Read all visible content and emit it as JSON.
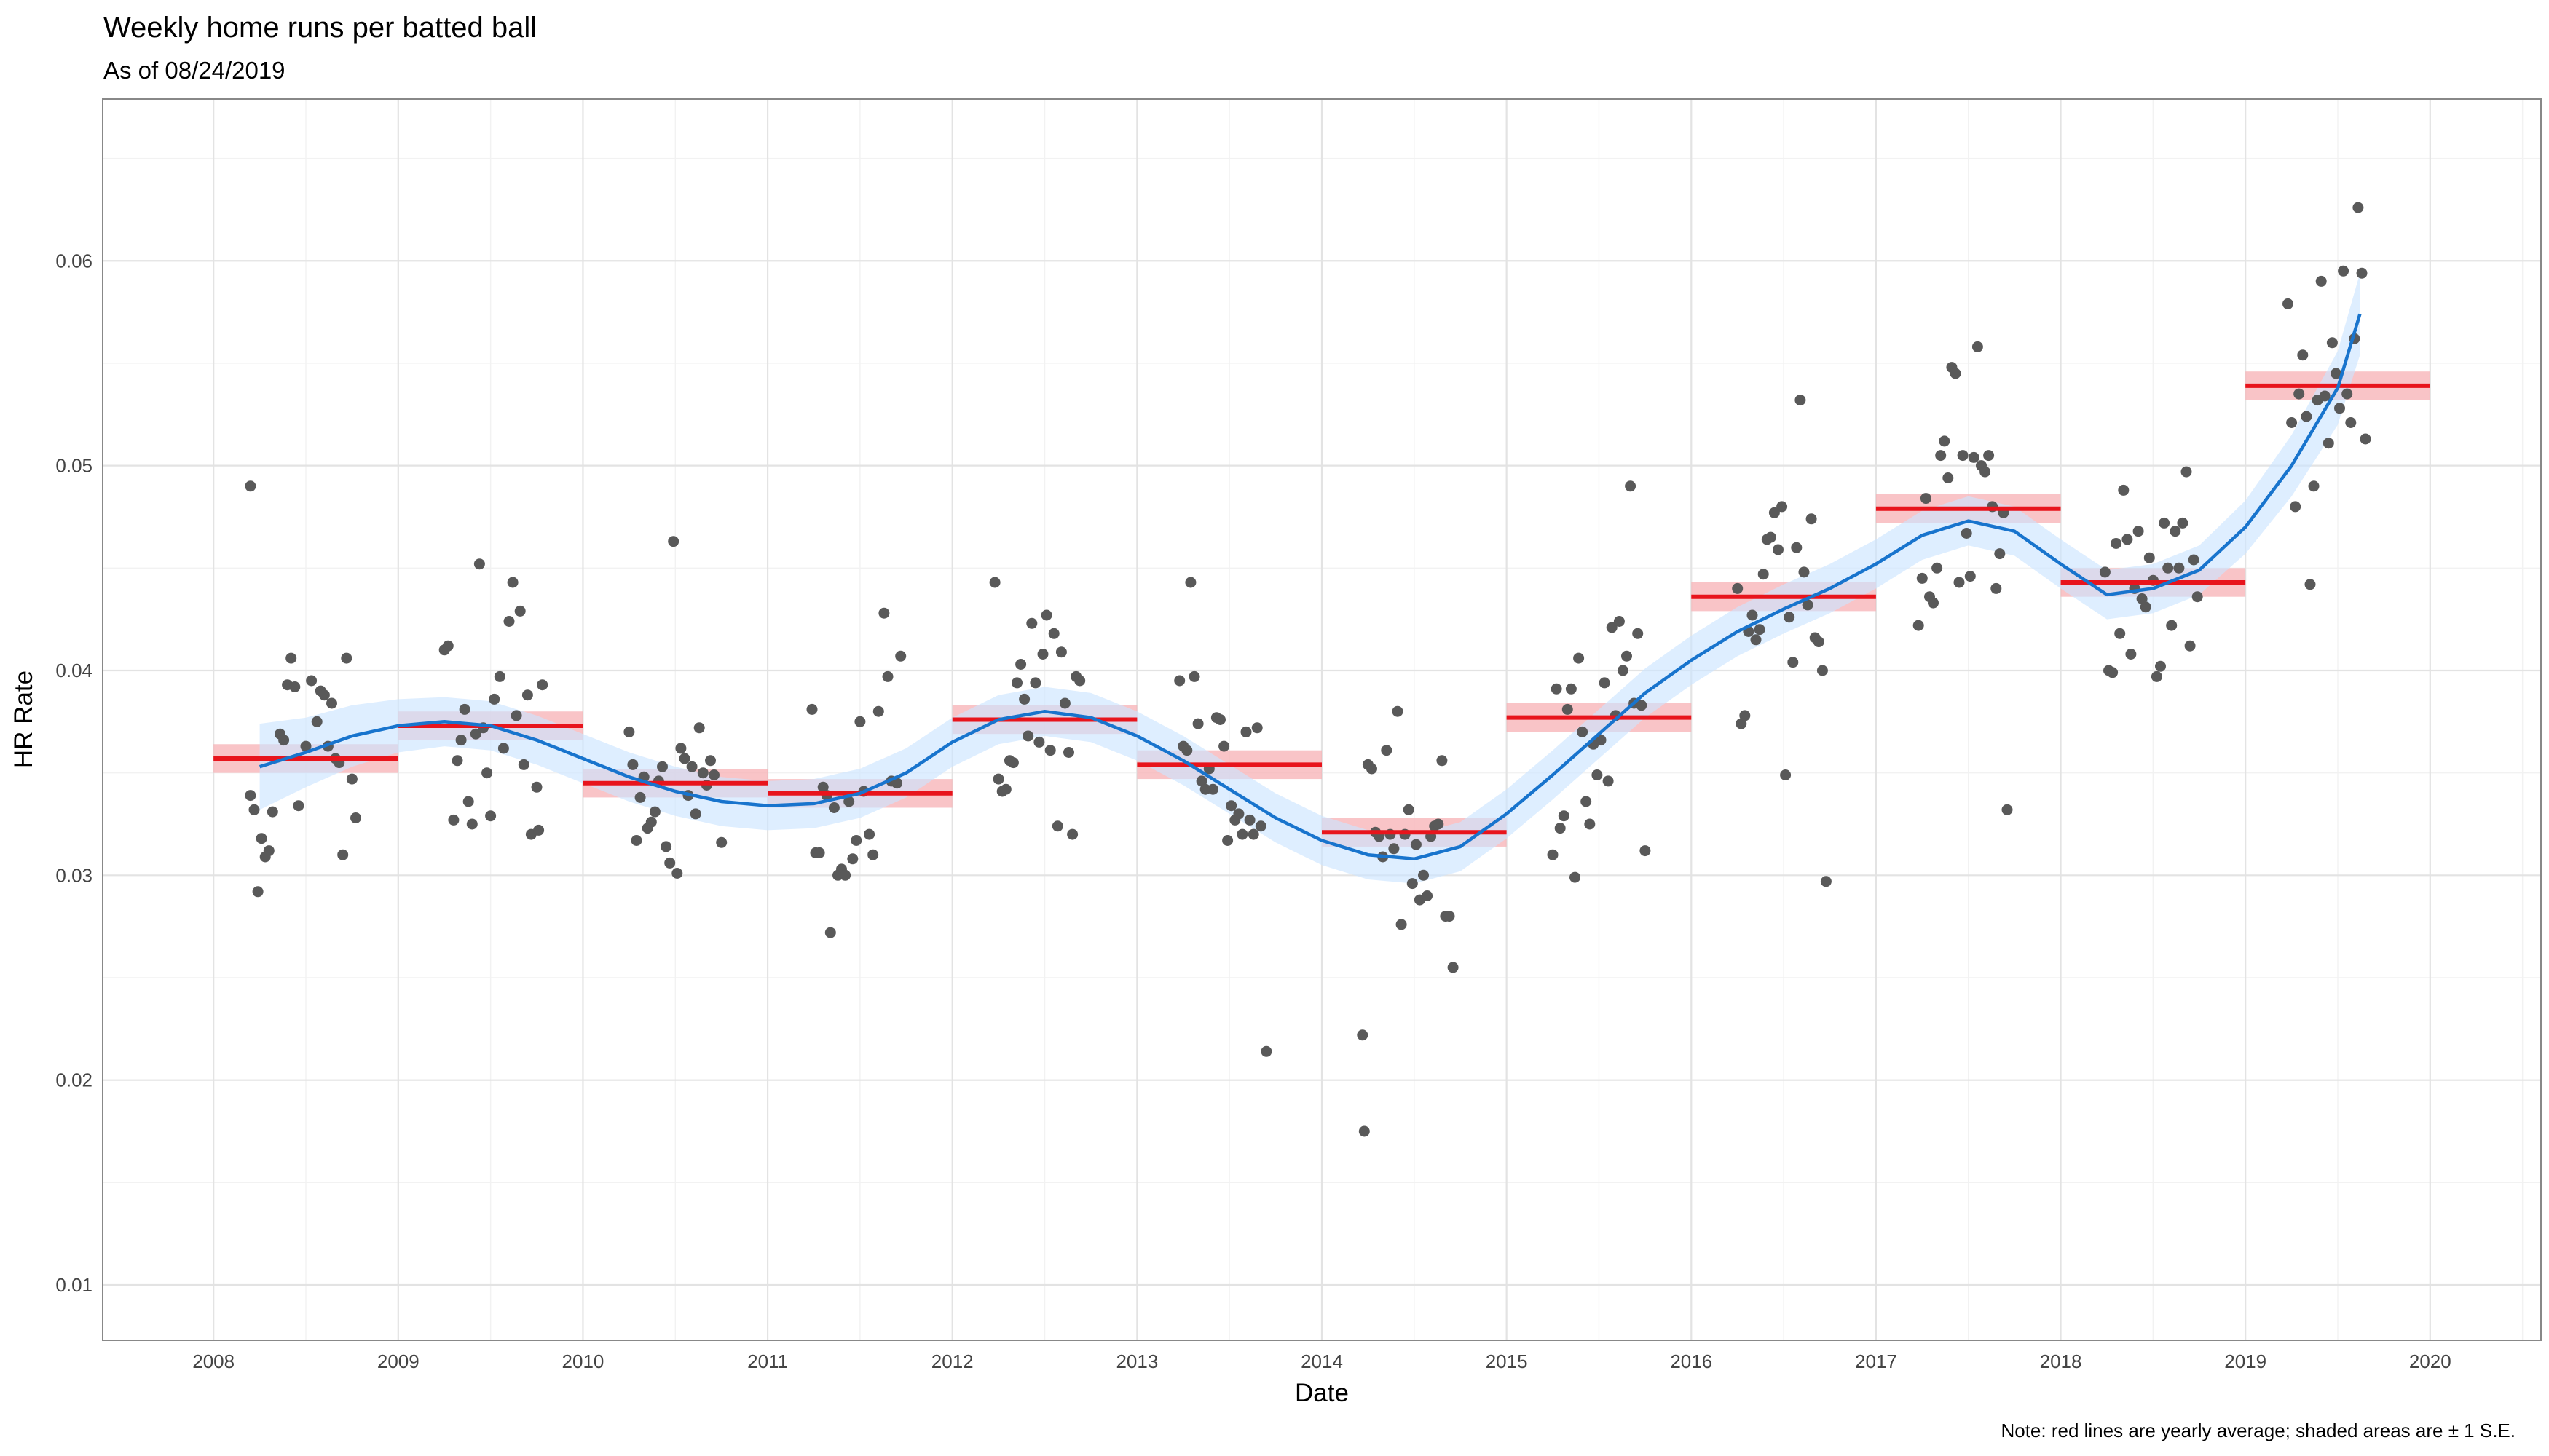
{
  "chart_data": {
    "type": "scatter",
    "title": "Weekly home runs per batted ball",
    "subtitle": "As of 08/24/2019",
    "xlabel": "Date",
    "ylabel": "HR Rate",
    "caption": "Note: red lines are yearly average; shaded areas are ± 1 S.E.",
    "x_ticks": [
      "2008",
      "2009",
      "2010",
      "2011",
      "2012",
      "2013",
      "2014",
      "2015",
      "2016",
      "2017",
      "2018",
      "2019",
      "2020"
    ],
    "y_ticks": [
      "0.01",
      "0.02",
      "0.03",
      "0.04",
      "0.05",
      "0.06"
    ],
    "xlim": [
      2007.4,
      2020.6
    ],
    "ylim": [
      0.0073,
      0.0679
    ],
    "grid": true,
    "colors": {
      "points": "#595959",
      "smooth_line": "#1874CD",
      "smooth_band": "#CCE5FF",
      "average_line": "#E8141C",
      "average_band": "#F7B0B4",
      "grid_major": "#E3E3E3",
      "grid_minor": "#F2F2F2",
      "panel_border": "#888888"
    },
    "yearly_average": [
      {
        "year": 2008,
        "value": 0.0357,
        "se": 0.0007
      },
      {
        "year": 2009,
        "value": 0.0373,
        "se": 0.0007
      },
      {
        "year": 2010,
        "value": 0.0345,
        "se": 0.0007
      },
      {
        "year": 2011,
        "value": 0.034,
        "se": 0.0007
      },
      {
        "year": 2012,
        "value": 0.0376,
        "se": 0.0007
      },
      {
        "year": 2013,
        "value": 0.0354,
        "se": 0.0007
      },
      {
        "year": 2014,
        "value": 0.0321,
        "se": 0.0007
      },
      {
        "year": 2015,
        "value": 0.0377,
        "se": 0.0007
      },
      {
        "year": 2016,
        "value": 0.0436,
        "se": 0.0007
      },
      {
        "year": 2017,
        "value": 0.0479,
        "se": 0.0007
      },
      {
        "year": 2018,
        "value": 0.0443,
        "se": 0.0007
      },
      {
        "year": 2019,
        "value": 0.0539,
        "se": 0.0007
      }
    ],
    "smooth": [
      [
        2008.25,
        0.0353,
        0.0021
      ],
      [
        2008.5,
        0.036,
        0.0017
      ],
      [
        2008.75,
        0.0368,
        0.0015
      ],
      [
        2009.0,
        0.0373,
        0.0013
      ],
      [
        2009.25,
        0.0375,
        0.0012
      ],
      [
        2009.5,
        0.0373,
        0.0012
      ],
      [
        2009.75,
        0.0366,
        0.0012
      ],
      [
        2010.0,
        0.0357,
        0.0012
      ],
      [
        2010.25,
        0.0348,
        0.0012
      ],
      [
        2010.5,
        0.0341,
        0.0012
      ],
      [
        2010.75,
        0.0336,
        0.0012
      ],
      [
        2011.0,
        0.0334,
        0.0012
      ],
      [
        2011.25,
        0.0335,
        0.0012
      ],
      [
        2011.5,
        0.034,
        0.0012
      ],
      [
        2011.75,
        0.035,
        0.0012
      ],
      [
        2012.0,
        0.0365,
        0.0012
      ],
      [
        2012.25,
        0.0376,
        0.0012
      ],
      [
        2012.5,
        0.038,
        0.0012
      ],
      [
        2012.75,
        0.0377,
        0.0012
      ],
      [
        2013.0,
        0.0368,
        0.0012
      ],
      [
        2013.25,
        0.0356,
        0.0012
      ],
      [
        2013.5,
        0.0342,
        0.0012
      ],
      [
        2013.75,
        0.0328,
        0.0012
      ],
      [
        2014.0,
        0.0317,
        0.0012
      ],
      [
        2014.25,
        0.031,
        0.0012
      ],
      [
        2014.5,
        0.0308,
        0.0012
      ],
      [
        2014.75,
        0.0314,
        0.0012
      ],
      [
        2015.0,
        0.033,
        0.0012
      ],
      [
        2015.25,
        0.0349,
        0.0012
      ],
      [
        2015.5,
        0.0369,
        0.0012
      ],
      [
        2015.75,
        0.0389,
        0.0012
      ],
      [
        2016.0,
        0.0405,
        0.0012
      ],
      [
        2016.25,
        0.0419,
        0.0012
      ],
      [
        2016.5,
        0.043,
        0.0012
      ],
      [
        2016.75,
        0.044,
        0.0012
      ],
      [
        2017.0,
        0.0452,
        0.0012
      ],
      [
        2017.25,
        0.0466,
        0.0012
      ],
      [
        2017.5,
        0.0473,
        0.0012
      ],
      [
        2017.75,
        0.0468,
        0.0012
      ],
      [
        2018.0,
        0.0452,
        0.0012
      ],
      [
        2018.25,
        0.0437,
        0.0012
      ],
      [
        2018.5,
        0.044,
        0.0012
      ],
      [
        2018.75,
        0.0449,
        0.0012
      ],
      [
        2019.0,
        0.047,
        0.0013
      ],
      [
        2019.25,
        0.05,
        0.0015
      ],
      [
        2019.5,
        0.0538,
        0.0018
      ],
      [
        2019.62,
        0.0574,
        0.002
      ]
    ],
    "points": [
      [
        2008.2,
        0.049
      ],
      [
        2008.2,
        0.0339
      ],
      [
        2008.22,
        0.0332
      ],
      [
        2008.24,
        0.0292
      ],
      [
        2008.26,
        0.0318
      ],
      [
        2008.28,
        0.0309
      ],
      [
        2008.3,
        0.0312
      ],
      [
        2008.32,
        0.0331
      ],
      [
        2008.36,
        0.0369
      ],
      [
        2008.38,
        0.0366
      ],
      [
        2008.4,
        0.0393
      ],
      [
        2008.42,
        0.0406
      ],
      [
        2008.44,
        0.0392
      ],
      [
        2008.46,
        0.0334
      ],
      [
        2008.5,
        0.0363
      ],
      [
        2008.53,
        0.0395
      ],
      [
        2008.56,
        0.0375
      ],
      [
        2008.58,
        0.039
      ],
      [
        2008.6,
        0.0388
      ],
      [
        2008.62,
        0.0363
      ],
      [
        2008.64,
        0.0384
      ],
      [
        2008.66,
        0.0357
      ],
      [
        2008.68,
        0.0355
      ],
      [
        2008.7,
        0.031
      ],
      [
        2008.72,
        0.0406
      ],
      [
        2008.75,
        0.0347
      ],
      [
        2008.77,
        0.0328
      ],
      [
        2009.25,
        0.041
      ],
      [
        2009.27,
        0.0412
      ],
      [
        2009.3,
        0.0327
      ],
      [
        2009.32,
        0.0356
      ],
      [
        2009.34,
        0.0366
      ],
      [
        2009.36,
        0.0381
      ],
      [
        2009.38,
        0.0336
      ],
      [
        2009.4,
        0.0325
      ],
      [
        2009.42,
        0.0369
      ],
      [
        2009.44,
        0.0452
      ],
      [
        2009.46,
        0.0372
      ],
      [
        2009.48,
        0.035
      ],
      [
        2009.5,
        0.0329
      ],
      [
        2009.52,
        0.0386
      ],
      [
        2009.55,
        0.0397
      ],
      [
        2009.57,
        0.0362
      ],
      [
        2009.6,
        0.0424
      ],
      [
        2009.62,
        0.0443
      ],
      [
        2009.64,
        0.0378
      ],
      [
        2009.66,
        0.0429
      ],
      [
        2009.68,
        0.0354
      ],
      [
        2009.7,
        0.0388
      ],
      [
        2009.72,
        0.032
      ],
      [
        2009.75,
        0.0343
      ],
      [
        2009.76,
        0.0322
      ],
      [
        2009.78,
        0.0393
      ],
      [
        2010.25,
        0.037
      ],
      [
        2010.27,
        0.0354
      ],
      [
        2010.29,
        0.0317
      ],
      [
        2010.31,
        0.0338
      ],
      [
        2010.33,
        0.0348
      ],
      [
        2010.35,
        0.0323
      ],
      [
        2010.37,
        0.0326
      ],
      [
        2010.39,
        0.0331
      ],
      [
        2010.41,
        0.0346
      ],
      [
        2010.43,
        0.0353
      ],
      [
        2010.45,
        0.0314
      ],
      [
        2010.47,
        0.0306
      ],
      [
        2010.49,
        0.0463
      ],
      [
        2010.51,
        0.0301
      ],
      [
        2010.53,
        0.0362
      ],
      [
        2010.55,
        0.0357
      ],
      [
        2010.57,
        0.0339
      ],
      [
        2010.59,
        0.0353
      ],
      [
        2010.61,
        0.033
      ],
      [
        2010.63,
        0.0372
      ],
      [
        2010.65,
        0.035
      ],
      [
        2010.67,
        0.0344
      ],
      [
        2010.69,
        0.0356
      ],
      [
        2010.71,
        0.0349
      ],
      [
        2010.75,
        0.0316
      ],
      [
        2011.24,
        0.0381
      ],
      [
        2011.26,
        0.0311
      ],
      [
        2011.28,
        0.0311
      ],
      [
        2011.3,
        0.0343
      ],
      [
        2011.32,
        0.0339
      ],
      [
        2011.34,
        0.0272
      ],
      [
        2011.36,
        0.0333
      ],
      [
        2011.38,
        0.03
      ],
      [
        2011.4,
        0.0303
      ],
      [
        2011.42,
        0.03
      ],
      [
        2011.44,
        0.0336
      ],
      [
        2011.46,
        0.0308
      ],
      [
        2011.48,
        0.0317
      ],
      [
        2011.5,
        0.0375
      ],
      [
        2011.52,
        0.0341
      ],
      [
        2011.55,
        0.032
      ],
      [
        2011.57,
        0.031
      ],
      [
        2011.6,
        0.038
      ],
      [
        2011.63,
        0.0428
      ],
      [
        2011.65,
        0.0397
      ],
      [
        2011.67,
        0.0346
      ],
      [
        2011.7,
        0.0345
      ],
      [
        2011.72,
        0.0407
      ],
      [
        2012.23,
        0.0443
      ],
      [
        2012.25,
        0.0347
      ],
      [
        2012.27,
        0.0341
      ],
      [
        2012.29,
        0.0342
      ],
      [
        2012.31,
        0.0356
      ],
      [
        2012.33,
        0.0355
      ],
      [
        2012.35,
        0.0394
      ],
      [
        2012.37,
        0.0403
      ],
      [
        2012.39,
        0.0386
      ],
      [
        2012.41,
        0.0368
      ],
      [
        2012.43,
        0.0423
      ],
      [
        2012.45,
        0.0394
      ],
      [
        2012.47,
        0.0365
      ],
      [
        2012.49,
        0.0408
      ],
      [
        2012.51,
        0.0427
      ],
      [
        2012.53,
        0.0361
      ],
      [
        2012.55,
        0.0418
      ],
      [
        2012.57,
        0.0324
      ],
      [
        2012.59,
        0.0409
      ],
      [
        2012.61,
        0.0384
      ],
      [
        2012.63,
        0.036
      ],
      [
        2012.65,
        0.032
      ],
      [
        2012.67,
        0.0397
      ],
      [
        2012.69,
        0.0395
      ],
      [
        2013.23,
        0.0395
      ],
      [
        2013.25,
        0.0363
      ],
      [
        2013.27,
        0.0361
      ],
      [
        2013.29,
        0.0443
      ],
      [
        2013.31,
        0.0397
      ],
      [
        2013.33,
        0.0374
      ],
      [
        2013.35,
        0.0346
      ],
      [
        2013.37,
        0.0342
      ],
      [
        2013.39,
        0.0352
      ],
      [
        2013.41,
        0.0342
      ],
      [
        2013.43,
        0.0377
      ],
      [
        2013.45,
        0.0376
      ],
      [
        2013.47,
        0.0363
      ],
      [
        2013.49,
        0.0317
      ],
      [
        2013.51,
        0.0334
      ],
      [
        2013.53,
        0.0327
      ],
      [
        2013.55,
        0.033
      ],
      [
        2013.57,
        0.032
      ],
      [
        2013.59,
        0.037
      ],
      [
        2013.61,
        0.0327
      ],
      [
        2013.63,
        0.032
      ],
      [
        2013.65,
        0.0372
      ],
      [
        2013.67,
        0.0324
      ],
      [
        2013.7,
        0.0214
      ],
      [
        2014.22,
        0.0222
      ],
      [
        2014.23,
        0.0175
      ],
      [
        2014.25,
        0.0354
      ],
      [
        2014.27,
        0.0352
      ],
      [
        2014.29,
        0.0321
      ],
      [
        2014.31,
        0.0319
      ],
      [
        2014.33,
        0.0309
      ],
      [
        2014.35,
        0.0361
      ],
      [
        2014.37,
        0.032
      ],
      [
        2014.39,
        0.0313
      ],
      [
        2014.41,
        0.038
      ],
      [
        2014.43,
        0.0276
      ],
      [
        2014.45,
        0.032
      ],
      [
        2014.47,
        0.0332
      ],
      [
        2014.49,
        0.0296
      ],
      [
        2014.51,
        0.0315
      ],
      [
        2014.53,
        0.0288
      ],
      [
        2014.55,
        0.03
      ],
      [
        2014.57,
        0.029
      ],
      [
        2014.59,
        0.0319
      ],
      [
        2014.61,
        0.0324
      ],
      [
        2014.63,
        0.0325
      ],
      [
        2014.65,
        0.0356
      ],
      [
        2014.67,
        0.028
      ],
      [
        2014.69,
        0.028
      ],
      [
        2014.71,
        0.0255
      ],
      [
        2015.25,
        0.031
      ],
      [
        2015.27,
        0.0391
      ],
      [
        2015.29,
        0.0323
      ],
      [
        2015.31,
        0.0329
      ],
      [
        2015.33,
        0.0381
      ],
      [
        2015.35,
        0.0391
      ],
      [
        2015.37,
        0.0299
      ],
      [
        2015.39,
        0.0406
      ],
      [
        2015.41,
        0.037
      ],
      [
        2015.43,
        0.0336
      ],
      [
        2015.45,
        0.0325
      ],
      [
        2015.47,
        0.0364
      ],
      [
        2015.49,
        0.0349
      ],
      [
        2015.51,
        0.0366
      ],
      [
        2015.53,
        0.0394
      ],
      [
        2015.55,
        0.0346
      ],
      [
        2015.57,
        0.0421
      ],
      [
        2015.59,
        0.0378
      ],
      [
        2015.61,
        0.0424
      ],
      [
        2015.63,
        0.04
      ],
      [
        2015.65,
        0.0407
      ],
      [
        2015.67,
        0.049
      ],
      [
        2015.69,
        0.0384
      ],
      [
        2015.71,
        0.0418
      ],
      [
        2015.73,
        0.0383
      ],
      [
        2015.75,
        0.0312
      ],
      [
        2016.25,
        0.044
      ],
      [
        2016.27,
        0.0374
      ],
      [
        2016.29,
        0.0378
      ],
      [
        2016.31,
        0.0419
      ],
      [
        2016.33,
        0.0427
      ],
      [
        2016.35,
        0.0415
      ],
      [
        2016.37,
        0.042
      ],
      [
        2016.39,
        0.0447
      ],
      [
        2016.41,
        0.0464
      ],
      [
        2016.43,
        0.0465
      ],
      [
        2016.45,
        0.0477
      ],
      [
        2016.47,
        0.0459
      ],
      [
        2016.49,
        0.048
      ],
      [
        2016.51,
        0.0349
      ],
      [
        2016.53,
        0.0426
      ],
      [
        2016.55,
        0.0404
      ],
      [
        2016.57,
        0.046
      ],
      [
        2016.59,
        0.0532
      ],
      [
        2016.61,
        0.0448
      ],
      [
        2016.63,
        0.0432
      ],
      [
        2016.65,
        0.0474
      ],
      [
        2016.67,
        0.0416
      ],
      [
        2016.69,
        0.0414
      ],
      [
        2016.71,
        0.04
      ],
      [
        2016.73,
        0.0297
      ],
      [
        2017.23,
        0.0422
      ],
      [
        2017.25,
        0.0445
      ],
      [
        2017.27,
        0.0484
      ],
      [
        2017.29,
        0.0436
      ],
      [
        2017.31,
        0.0433
      ],
      [
        2017.33,
        0.045
      ],
      [
        2017.35,
        0.0505
      ],
      [
        2017.37,
        0.0512
      ],
      [
        2017.39,
        0.0494
      ],
      [
        2017.41,
        0.0548
      ],
      [
        2017.43,
        0.0545
      ],
      [
        2017.45,
        0.0443
      ],
      [
        2017.47,
        0.0505
      ],
      [
        2017.49,
        0.0467
      ],
      [
        2017.51,
        0.0446
      ],
      [
        2017.53,
        0.0504
      ],
      [
        2017.55,
        0.0558
      ],
      [
        2017.57,
        0.05
      ],
      [
        2017.59,
        0.0497
      ],
      [
        2017.61,
        0.0505
      ],
      [
        2017.63,
        0.048
      ],
      [
        2017.65,
        0.044
      ],
      [
        2017.67,
        0.0457
      ],
      [
        2017.69,
        0.0477
      ],
      [
        2017.71,
        0.0332
      ],
      [
        2018.24,
        0.0448
      ],
      [
        2018.26,
        0.04
      ],
      [
        2018.28,
        0.0399
      ],
      [
        2018.3,
        0.0462
      ],
      [
        2018.32,
        0.0418
      ],
      [
        2018.34,
        0.0488
      ],
      [
        2018.36,
        0.0464
      ],
      [
        2018.38,
        0.0408
      ],
      [
        2018.4,
        0.044
      ],
      [
        2018.42,
        0.0468
      ],
      [
        2018.44,
        0.0435
      ],
      [
        2018.46,
        0.0431
      ],
      [
        2018.48,
        0.0455
      ],
      [
        2018.5,
        0.0444
      ],
      [
        2018.52,
        0.0397
      ],
      [
        2018.54,
        0.0402
      ],
      [
        2018.56,
        0.0472
      ],
      [
        2018.58,
        0.045
      ],
      [
        2018.6,
        0.0422
      ],
      [
        2018.62,
        0.0468
      ],
      [
        2018.64,
        0.045
      ],
      [
        2018.66,
        0.0472
      ],
      [
        2018.68,
        0.0497
      ],
      [
        2018.7,
        0.0412
      ],
      [
        2018.72,
        0.0454
      ],
      [
        2018.74,
        0.0436
      ],
      [
        2019.23,
        0.0579
      ],
      [
        2019.25,
        0.0521
      ],
      [
        2019.27,
        0.048
      ],
      [
        2019.29,
        0.0535
      ],
      [
        2019.31,
        0.0554
      ],
      [
        2019.33,
        0.0524
      ],
      [
        2019.35,
        0.0442
      ],
      [
        2019.37,
        0.049
      ],
      [
        2019.39,
        0.0532
      ],
      [
        2019.41,
        0.059
      ],
      [
        2019.43,
        0.0534
      ],
      [
        2019.45,
        0.0511
      ],
      [
        2019.47,
        0.056
      ],
      [
        2019.49,
        0.0545
      ],
      [
        2019.51,
        0.0528
      ],
      [
        2019.53,
        0.0595
      ],
      [
        2019.55,
        0.0535
      ],
      [
        2019.57,
        0.0521
      ],
      [
        2019.59,
        0.0562
      ],
      [
        2019.61,
        0.0626
      ],
      [
        2019.63,
        0.0594
      ],
      [
        2019.65,
        0.0513
      ]
    ]
  }
}
